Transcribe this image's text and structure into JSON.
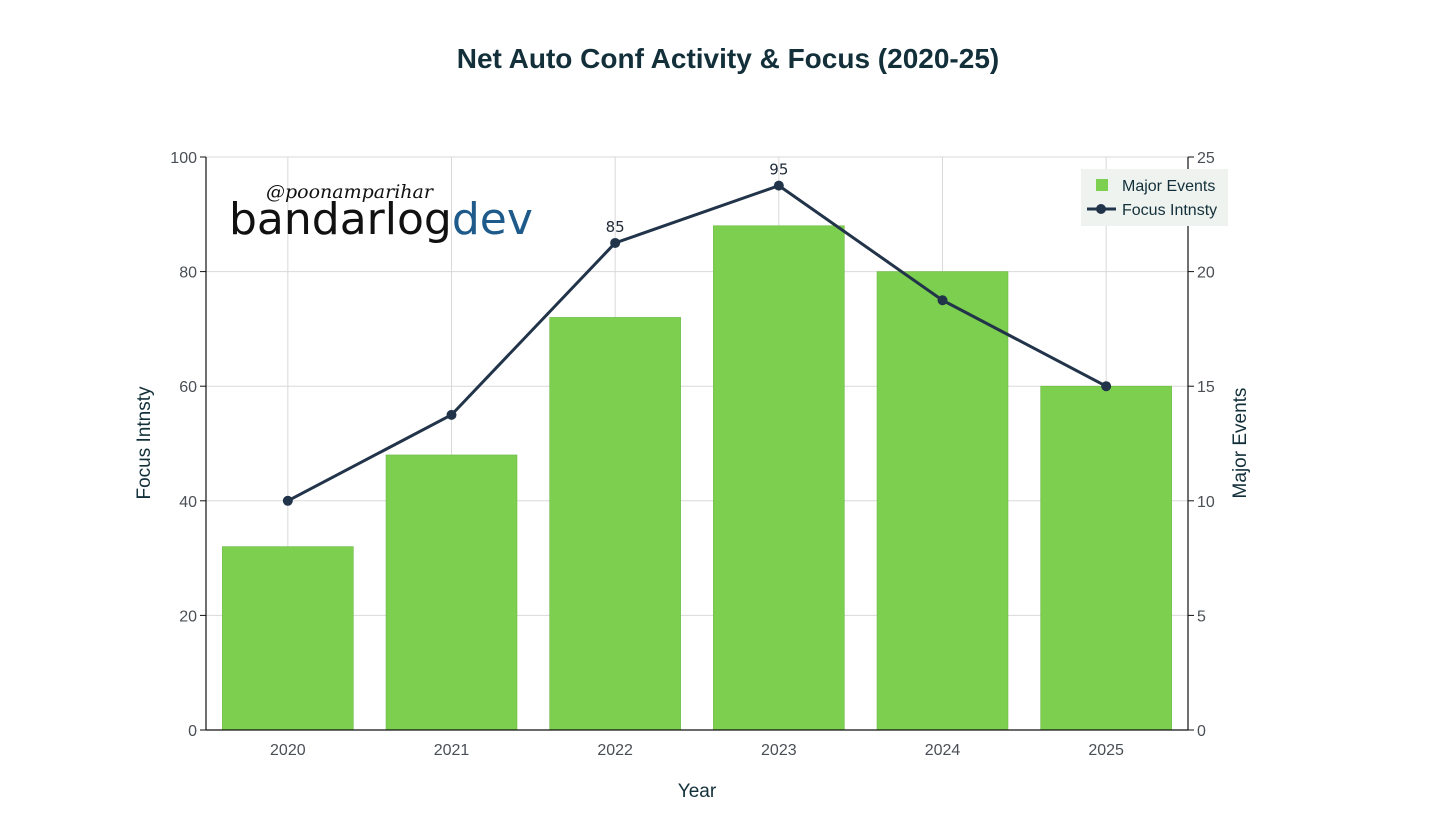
{
  "chart_data": {
    "type": "bar+line",
    "title": "Net Auto Conf Activity & Focus (2020-25)",
    "xlabel": "Year",
    "ylabel_left": "Focus Intnsty",
    "ylabel_right": "Major Events",
    "categories": [
      "2020",
      "2021",
      "2022",
      "2023",
      "2024",
      "2025"
    ],
    "ylim_left": [
      0,
      100
    ],
    "ylim_right": [
      0,
      25
    ],
    "yticks_left": [
      0,
      20,
      40,
      60,
      80,
      100
    ],
    "yticks_right": [
      0,
      5,
      10,
      15,
      20,
      25
    ],
    "grid": true,
    "series": [
      {
        "name": "Major Events",
        "kind": "bar",
        "axis": "right",
        "values": [
          8,
          12,
          18,
          22,
          20,
          15
        ],
        "color": "#7dcf4f"
      },
      {
        "name": "Focus Intnsty",
        "kind": "line",
        "axis": "left",
        "values": [
          40,
          55,
          85,
          95,
          75,
          60
        ],
        "color": "#22344a"
      }
    ],
    "data_labels": [
      {
        "category": "2022",
        "text": "85"
      },
      {
        "category": "2023",
        "text": "95"
      }
    ],
    "legend_position": "top-right"
  },
  "watermark": {
    "handle": "@poonamparihar",
    "brand": "bandarlog",
    "brand_suffix": "dev"
  },
  "colors": {
    "grid": "#d9d9d9",
    "axis": "#111111",
    "legend_bg": "#eef3ef"
  }
}
